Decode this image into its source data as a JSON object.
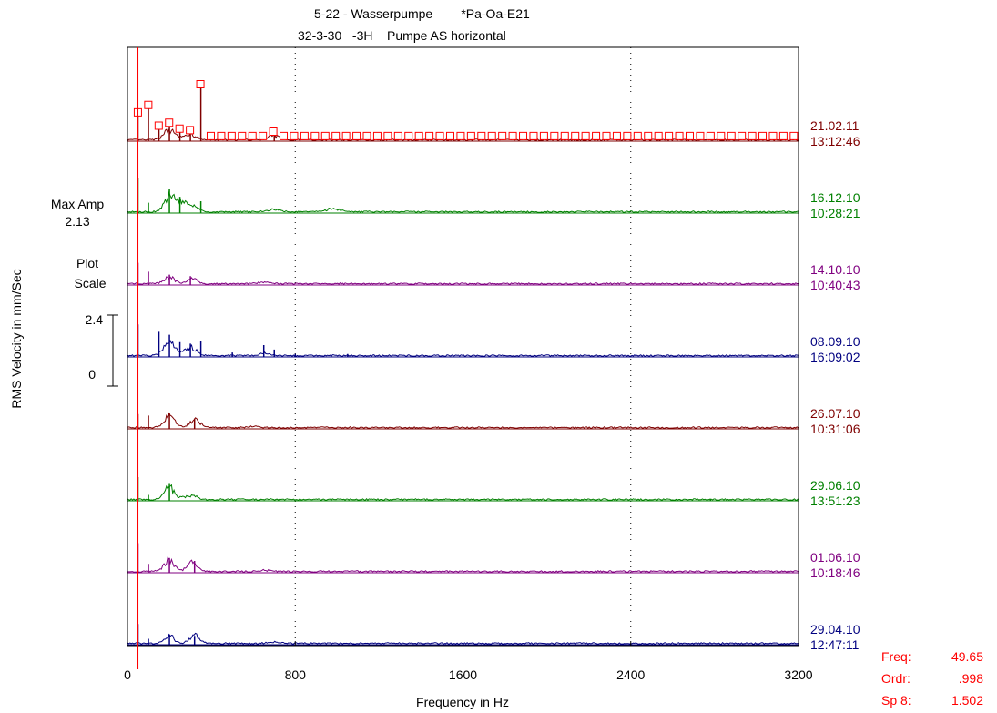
{
  "header": {
    "title_line1": "5-22 - Wasserpumpe        *Pa-Oa-E21",
    "title_line2": "32-3-30   -3H    Pumpe AS horizontal"
  },
  "side_info": {
    "max_amp_label": "Max Amp",
    "max_amp_value": "2.13",
    "plot_scale_label_1": "Plot",
    "plot_scale_label_2": "Scale",
    "scale_top": "2.4",
    "scale_bottom": "0"
  },
  "cursor": {
    "freq_label": "Freq:",
    "freq_value": "49.65",
    "ordr_label": "Ordr:",
    "ordr_value": ".998",
    "sp_label": "Sp 8:",
    "sp_value": "1.502",
    "color": "#ff0000"
  },
  "chart_data": {
    "type": "line",
    "title": "5-22 - Wasserpumpe *Pa-Oa-E21 / 32-3-30 -3H Pumpe AS horizontal",
    "xlabel": "Frequency in Hz",
    "ylabel": "RMS Velocity in mm/Sec",
    "xlim": [
      0,
      3200
    ],
    "xticks": [
      0,
      800,
      1600,
      2400,
      3200
    ],
    "grid_x": [
      800,
      1600,
      2400
    ],
    "cursor_x": 49.65,
    "series": [
      {
        "date": "21.02.11",
        "time": "13:12:46",
        "color": "#7f0000",
        "markers": true,
        "peaks": [
          [
            50,
            0.85
          ],
          [
            100,
            1.1
          ],
          [
            150,
            0.4
          ],
          [
            200,
            0.5
          ],
          [
            250,
            0.3
          ],
          [
            300,
            0.25
          ],
          [
            350,
            1.8
          ],
          [
            700,
            0.2
          ]
        ],
        "humps": [
          [
            200,
            0.35,
            40
          ],
          [
            300,
            0.2,
            40
          ],
          [
            700,
            0.15,
            40
          ]
        ]
      },
      {
        "date": "16.12.10",
        "time": "10:28:21",
        "color": "#008000",
        "peaks": [
          [
            50,
            1.2
          ],
          [
            100,
            0.35
          ],
          [
            200,
            0.8
          ],
          [
            250,
            0.55
          ],
          [
            350,
            0.4
          ]
        ],
        "humps": [
          [
            200,
            0.55,
            35
          ],
          [
            260,
            0.35,
            40
          ],
          [
            320,
            0.2,
            30
          ],
          [
            700,
            0.1,
            40
          ],
          [
            980,
            0.1,
            60
          ]
        ]
      },
      {
        "date": "14.10.10",
        "time": "10:40:43",
        "color": "#800080",
        "peaks": [
          [
            50,
            0.75
          ],
          [
            100,
            0.45
          ],
          [
            200,
            0.35
          ],
          [
            300,
            0.3
          ]
        ],
        "humps": [
          [
            200,
            0.25,
            35
          ],
          [
            310,
            0.2,
            30
          ],
          [
            650,
            0.05,
            40
          ]
        ]
      },
      {
        "date": "08.09.10",
        "time": "16:09:02",
        "color": "#000080",
        "peaks": [
          [
            50,
            1.1
          ],
          [
            150,
            0.85
          ],
          [
            200,
            0.75
          ],
          [
            250,
            0.5
          ],
          [
            300,
            0.45
          ],
          [
            350,
            0.55
          ],
          [
            500,
            0.15
          ],
          [
            650,
            0.4
          ],
          [
            700,
            0.25
          ],
          [
            800,
            0.1
          ],
          [
            1050,
            0.1
          ]
        ],
        "humps": [
          [
            200,
            0.45,
            40
          ],
          [
            300,
            0.3,
            40
          ],
          [
            650,
            0.1,
            30
          ]
        ]
      },
      {
        "date": "26.07.10",
        "time": "10:31:06",
        "color": "#7f0000",
        "peaks": [
          [
            50,
            0.5
          ],
          [
            100,
            0.45
          ],
          [
            200,
            0.55
          ],
          [
            320,
            0.35
          ]
        ],
        "humps": [
          [
            200,
            0.4,
            35
          ],
          [
            320,
            0.3,
            35
          ],
          [
            600,
            0.05,
            30
          ]
        ]
      },
      {
        "date": "29.06.10",
        "time": "13:51:23",
        "color": "#008000",
        "peaks": [
          [
            50,
            0.8
          ],
          [
            100,
            0.2
          ],
          [
            200,
            0.6
          ],
          [
            2780,
            0.05
          ]
        ],
        "humps": [
          [
            200,
            0.45,
            35
          ],
          [
            300,
            0.15,
            40
          ]
        ]
      },
      {
        "date": "01.06.10",
        "time": "10:18:46",
        "color": "#800080",
        "peaks": [
          [
            50,
            1.0
          ],
          [
            100,
            0.3
          ],
          [
            200,
            0.5
          ],
          [
            320,
            0.4
          ]
        ],
        "humps": [
          [
            200,
            0.4,
            35
          ],
          [
            310,
            0.35,
            35
          ],
          [
            650,
            0.05,
            40
          ]
        ]
      },
      {
        "date": "29.04.10",
        "time": "12:47:11",
        "color": "#000080",
        "peaks": [
          [
            50,
            0.7
          ],
          [
            100,
            0.2
          ],
          [
            200,
            0.35
          ],
          [
            320,
            0.3
          ]
        ],
        "humps": [
          [
            200,
            0.3,
            30
          ],
          [
            320,
            0.3,
            35
          ],
          [
            700,
            0.05,
            40
          ]
        ]
      }
    ]
  }
}
